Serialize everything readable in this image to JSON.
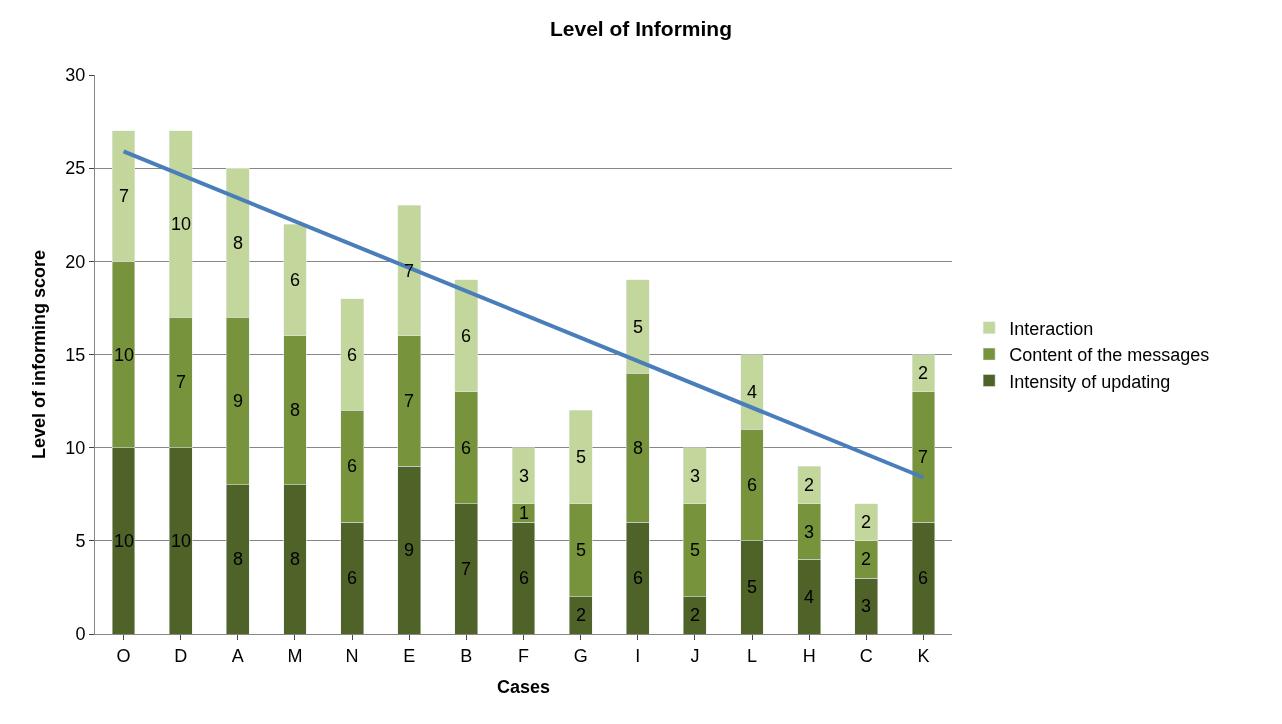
{
  "chart_data": {
    "type": "bar",
    "title": "Level of Informing",
    "xlabel": "Cases",
    "ylabel": "Level of informing score",
    "categories": [
      "O",
      "D",
      "A",
      "M",
      "N",
      "E",
      "B",
      "F",
      "G",
      "I",
      "J",
      "L",
      "H",
      "C",
      "K"
    ],
    "stacked": true,
    "legend": "right",
    "grid": "y",
    "ylim": [
      0,
      30
    ],
    "yticks": [
      0,
      5,
      10,
      15,
      20,
      25,
      30
    ],
    "series": [
      {
        "name": "Intensity of updating",
        "color": "#4f6228",
        "values": [
          10,
          10,
          8,
          8,
          6,
          9,
          7,
          6,
          2,
          6,
          2,
          5,
          4,
          3,
          6
        ],
        "value_labels": [
          "10",
          "10",
          "8",
          "8",
          "6",
          "9",
          "7",
          "6",
          "2",
          "6",
          "2",
          "5",
          "4",
          "3",
          "6"
        ]
      },
      {
        "name": "Content of the messages",
        "color": "#77933c",
        "values": [
          10,
          7,
          9,
          8,
          6,
          7,
          6,
          1,
          5,
          8,
          5,
          6,
          3,
          2,
          7
        ],
        "value_labels": [
          "10",
          "7",
          "9",
          "8",
          "6",
          "7",
          "6",
          "1",
          "5",
          "8",
          "5",
          "6",
          "3",
          "2",
          "7"
        ]
      },
      {
        "name": "Interaction",
        "color": "#c3d69b",
        "values": [
          7,
          10,
          8,
          6,
          6,
          7,
          6,
          3,
          5,
          5,
          3,
          4,
          2,
          2,
          2
        ],
        "value_labels": [
          "7",
          "10",
          "8",
          "6",
          "6",
          "7",
          "6",
          "3",
          "5",
          "5",
          "3",
          "4",
          "2",
          "2",
          "2"
        ]
      },
      {
        "type": "line",
        "color": "#4a7ebb",
        "values": [
          25.9,
          null,
          null,
          null,
          null,
          null,
          null,
          null,
          null,
          null,
          null,
          null,
          null,
          null,
          8.4
        ]
      }
    ]
  }
}
